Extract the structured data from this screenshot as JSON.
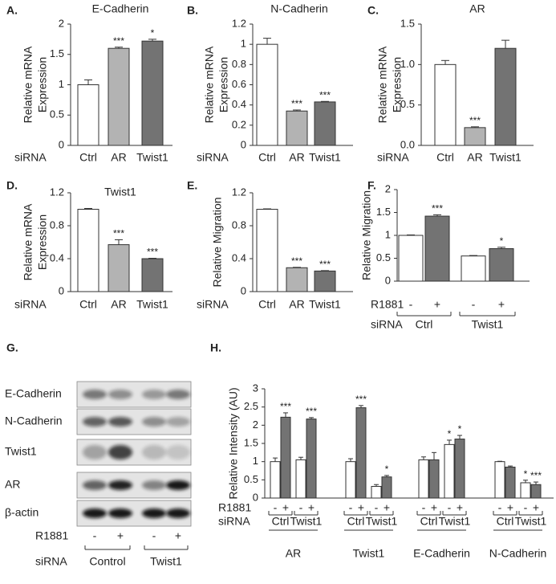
{
  "chart_data": [
    {
      "type": "bar",
      "label": "A.",
      "title": "E-Cadherin",
      "ylabel": [
        "Relative mRNA",
        "Expression"
      ],
      "category_label": "siRNA",
      "categories": [
        "Ctrl",
        "AR",
        "Twist1"
      ],
      "values": [
        1.0,
        1.6,
        1.72
      ],
      "errors": [
        0.08,
        0.02,
        0.03
      ],
      "significance": [
        null,
        "***",
        "*"
      ],
      "colors": [
        "#ffffff",
        "#b3b3b3",
        "#737373"
      ],
      "ylim": [
        0,
        2
      ],
      "yticks": [
        0,
        0.5,
        1,
        1.5,
        2
      ]
    },
    {
      "type": "bar",
      "label": "B.",
      "title": "N-Cadherin",
      "ylabel": [
        "Relative mRNA",
        "Expression"
      ],
      "category_label": "siRNA",
      "categories": [
        "Ctrl",
        "AR",
        "Twist1"
      ],
      "values": [
        1.0,
        0.34,
        0.43
      ],
      "errors": [
        0.06,
        0.01,
        0.005
      ],
      "significance": [
        null,
        "***",
        "***"
      ],
      "colors": [
        "#ffffff",
        "#b3b3b3",
        "#737373"
      ],
      "ylim": [
        0,
        1.2
      ],
      "yticks": [
        0,
        0.2,
        0.4,
        0.6,
        0.8,
        1,
        1.2
      ]
    },
    {
      "type": "bar",
      "label": "C.",
      "title": "AR",
      "ylabel": [
        "Relative mRNA",
        "Expression"
      ],
      "category_label": "siRNA",
      "categories": [
        "Ctrl",
        "AR",
        "Twist1"
      ],
      "values": [
        1.0,
        0.22,
        1.2
      ],
      "errors": [
        0.05,
        0.01,
        0.1
      ],
      "significance": [
        null,
        "***",
        null
      ],
      "colors": [
        "#ffffff",
        "#b3b3b3",
        "#737373"
      ],
      "ylim": [
        0,
        1.5
      ],
      "yticks": [
        {
          "value": 0,
          "label": "0.0"
        },
        0.5,
        {
          "value": 1,
          "label": "1.0"
        },
        1.5
      ]
    },
    {
      "type": "bar",
      "label": "D.",
      "title": "Twist1",
      "ylabel": [
        "Relative mRNA",
        "Expression"
      ],
      "category_label": "siRNA",
      "categories": [
        "Ctrl",
        "AR",
        "Twist1"
      ],
      "values": [
        1.0,
        0.57,
        0.4
      ],
      "errors": [
        0.01,
        0.06,
        0.005
      ],
      "significance": [
        null,
        "***",
        "***"
      ],
      "colors": [
        "#ffffff",
        "#b3b3b3",
        "#737373"
      ],
      "ylim": [
        0,
        1.2
      ],
      "yticks": [
        0,
        0.4,
        0.8,
        1.2
      ]
    },
    {
      "type": "bar",
      "label": "E.",
      "ylabel": [
        "Relative Migration"
      ],
      "category_label": "siRNA",
      "categories": [
        "Ctrl",
        "AR",
        "Twist1"
      ],
      "values": [
        1.0,
        0.29,
        0.25
      ],
      "errors": [
        0.005,
        0.005,
        0.005
      ],
      "significance": [
        null,
        "***",
        "***"
      ],
      "colors": [
        "#ffffff",
        "#b3b3b3",
        "#737373"
      ],
      "ylim": [
        0,
        1.2
      ],
      "yticks": [
        0,
        0.4,
        0.8,
        1.2
      ]
    },
    {
      "type": "bar",
      "label": "F.",
      "ylabel": [
        "Relative Migration"
      ],
      "treatment_label": "R1881",
      "group_label": "siRNA",
      "categories": [
        "-",
        "+",
        "-",
        "+"
      ],
      "groups": [
        "Ctrl",
        "Twist1"
      ],
      "values": [
        1.0,
        1.42,
        0.55,
        0.71
      ],
      "errors": [
        0.01,
        0.03,
        0.01,
        0.03
      ],
      "significance": [
        null,
        "***",
        null,
        "*"
      ],
      "colors": [
        "#ffffff",
        "#737373"
      ],
      "ylim": [
        0,
        2
      ],
      "yticks": [
        0,
        0.5,
        1,
        1.5,
        2
      ]
    },
    {
      "type": "bar",
      "label": "H.",
      "ylabel": [
        "Relative Intensity  (AU)"
      ],
      "treatment_label": "R1881",
      "group_label": "siRNA",
      "categories": [
        "-",
        "+",
        "-",
        "+",
        "-",
        "+",
        "-",
        "+",
        "-",
        "+",
        "-",
        "+",
        "-",
        "+",
        "-",
        "+"
      ],
      "groups": [
        "Ctrl",
        "Twist1",
        "Ctrl",
        "Twist1",
        "Ctrl",
        "Twist1",
        "Ctrl",
        "Twist1"
      ],
      "targets": [
        "AR",
        "Twist1",
        "E-Cadherin",
        "N-Cadherin"
      ],
      "values": [
        1.0,
        2.22,
        1.05,
        2.17,
        1.0,
        2.48,
        0.32,
        0.58,
        1.05,
        1.05,
        1.47,
        1.62,
        1.0,
        0.85,
        0.42,
        0.37
      ],
      "errors": [
        0.1,
        0.12,
        0.07,
        0.04,
        0.08,
        0.06,
        0.05,
        0.04,
        0.08,
        0.2,
        0.12,
        0.1,
        0.01,
        0.03,
        0.07,
        0.07
      ],
      "significance": [
        null,
        "***",
        null,
        "***",
        null,
        "***",
        null,
        "*",
        null,
        null,
        "*",
        "*",
        null,
        null,
        "*",
        "***"
      ],
      "colors": [
        "#ffffff",
        "#737373"
      ],
      "ylim": [
        0,
        3
      ],
      "yticks": [
        0,
        0.5,
        1,
        1.5,
        2,
        2.5,
        3
      ]
    }
  ],
  "blot": {
    "label": "G.",
    "rows": [
      "E-Cadherin",
      "N-Cadherin",
      "Twist1",
      "AR",
      "β-actin"
    ],
    "treatment_label": "R1881",
    "treatment": [
      "-",
      "+",
      "-",
      "+"
    ],
    "group_label": "siRNA",
    "groups": [
      "Control",
      "Twist1"
    ]
  }
}
